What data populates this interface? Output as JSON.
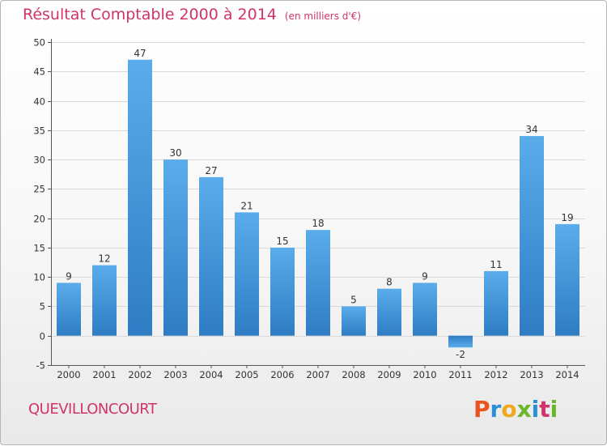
{
  "header": {
    "title": "Résultat Comptable 2000 à 2014",
    "subtitle": "(en milliers d'€)"
  },
  "footer": {
    "commune": "QUEVILLONCOURT",
    "logo": "Proxiti"
  },
  "colors": {
    "bar_top": "#5aacea",
    "bar_bottom": "#2f7cc4",
    "title": "#d0346a",
    "grid": "#d9d9d9"
  },
  "chart_data": {
    "type": "bar",
    "title": "Résultat Comptable 2000 à 2014",
    "subtitle": "(en milliers d'€)",
    "xlabel": "",
    "ylabel": "",
    "categories": [
      "2000",
      "2001",
      "2002",
      "2003",
      "2004",
      "2005",
      "2006",
      "2007",
      "2008",
      "2009",
      "2010",
      "2011",
      "2012",
      "2013",
      "2014"
    ],
    "values": [
      9,
      12,
      47,
      30,
      27,
      21,
      15,
      18,
      5,
      8,
      9,
      -2,
      11,
      34,
      19
    ],
    "ylim": [
      -5,
      50
    ],
    "yticks": [
      -5,
      0,
      5,
      10,
      15,
      20,
      25,
      30,
      35,
      40,
      45,
      50
    ],
    "grid": true,
    "legend": "none"
  }
}
